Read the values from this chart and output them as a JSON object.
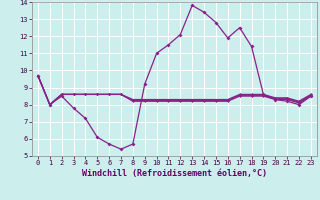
{
  "xlabel": "Windchill (Refroidissement éolien,°C)",
  "xlim": [
    -0.5,
    23.5
  ],
  "ylim": [
    5,
    14
  ],
  "yticks": [
    5,
    6,
    7,
    8,
    9,
    10,
    11,
    12,
    13,
    14
  ],
  "xticks": [
    0,
    1,
    2,
    3,
    4,
    5,
    6,
    7,
    8,
    9,
    10,
    11,
    12,
    13,
    14,
    15,
    16,
    17,
    18,
    19,
    20,
    21,
    22,
    23
  ],
  "background_color": "#cceeed",
  "grid_color": "#ffffff",
  "line_color": "#882288",
  "line1_y": [
    9.7,
    8.0,
    8.5,
    7.8,
    7.2,
    6.1,
    5.7,
    5.4,
    5.7,
    9.2,
    11.0,
    11.5,
    12.1,
    13.8,
    13.4,
    12.8,
    11.9,
    12.5,
    11.4,
    8.6,
    8.3,
    8.2,
    8.0,
    8.5
  ],
  "line2_y": [
    9.7,
    8.0,
    8.6,
    8.6,
    8.6,
    8.6,
    8.6,
    8.6,
    8.2,
    8.2,
    8.2,
    8.2,
    8.2,
    8.2,
    8.2,
    8.2,
    8.2,
    8.5,
    8.5,
    8.5,
    8.3,
    8.3,
    8.1,
    8.5
  ],
  "line3_y": [
    9.7,
    8.0,
    8.6,
    8.6,
    8.6,
    8.6,
    8.6,
    8.6,
    8.25,
    8.25,
    8.25,
    8.25,
    8.25,
    8.25,
    8.25,
    8.25,
    8.25,
    8.55,
    8.55,
    8.55,
    8.35,
    8.35,
    8.15,
    8.55
  ],
  "line4_y": [
    9.7,
    8.0,
    8.6,
    8.6,
    8.6,
    8.6,
    8.6,
    8.6,
    8.3,
    8.3,
    8.3,
    8.3,
    8.3,
    8.3,
    8.3,
    8.3,
    8.3,
    8.6,
    8.6,
    8.6,
    8.4,
    8.4,
    8.2,
    8.6
  ]
}
